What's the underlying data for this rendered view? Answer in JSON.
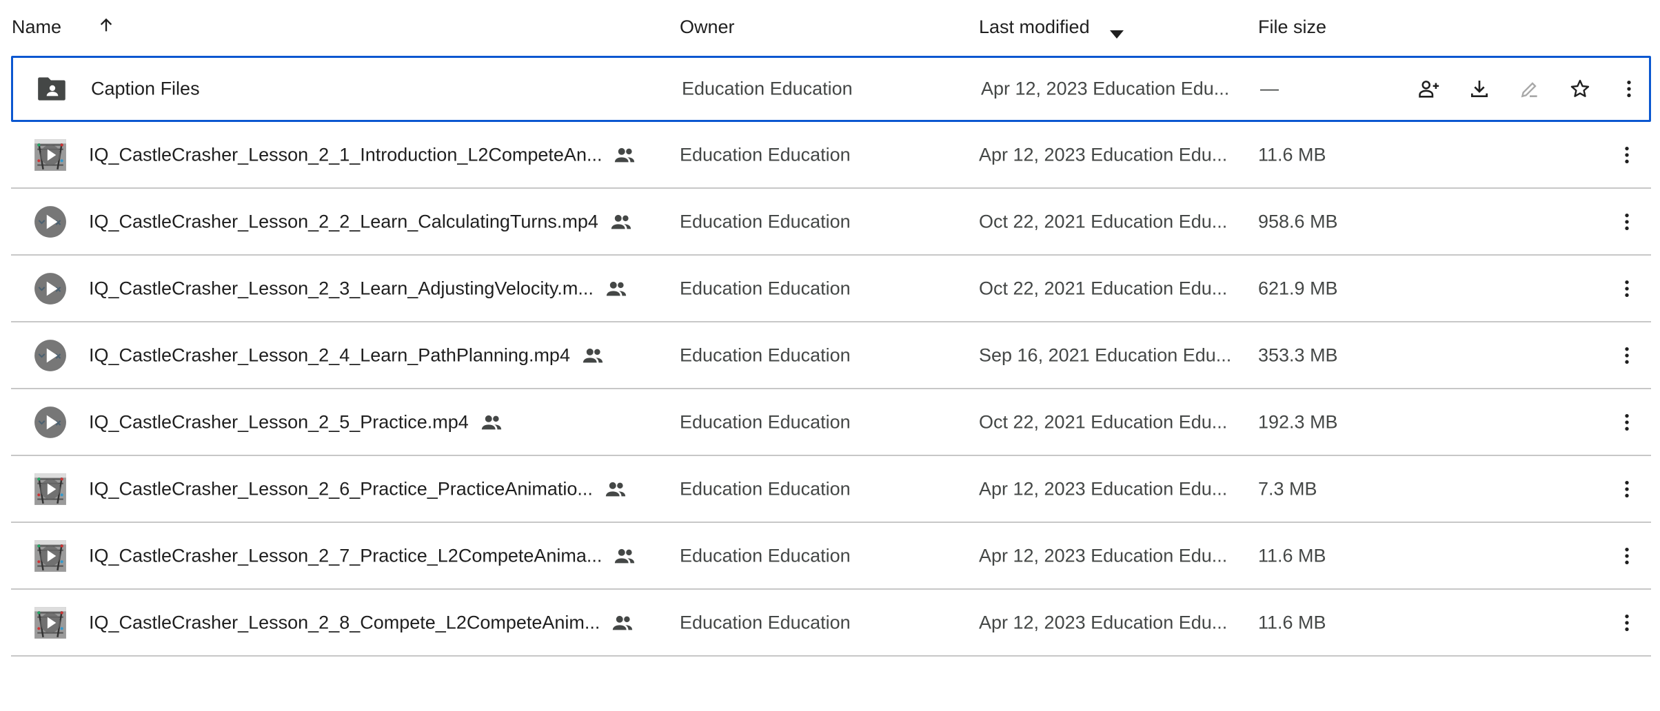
{
  "header": {
    "name": "Name",
    "owner": "Owner",
    "last_modified": "Last modified",
    "file_size": "File size",
    "sort_icon": "arrow-up-icon",
    "modified_sort_icon": "caret-down-icon"
  },
  "accent": "#0b57d0",
  "files": [
    {
      "icon": "folder",
      "name": "Caption Files",
      "shared": false,
      "owner": "Education Education",
      "modified": "Apr 12, 2023 Education Edu...",
      "size": "—",
      "selected": true
    },
    {
      "icon": "thumb",
      "name": "IQ_CastleCrasher_Lesson_2_1_Introduction_L2CompeteAn...",
      "shared": true,
      "owner": "Education Education",
      "modified": "Apr 12, 2023 Education Edu...",
      "size": "11.6 MB"
    },
    {
      "icon": "circle",
      "name": "IQ_CastleCrasher_Lesson_2_2_Learn_CalculatingTurns.mp4",
      "shared": true,
      "owner": "Education Education",
      "modified": "Oct 22, 2021 Education Edu...",
      "size": "958.6 MB"
    },
    {
      "icon": "circle",
      "name": "IQ_CastleCrasher_Lesson_2_3_Learn_AdjustingVelocity.m...",
      "shared": true,
      "owner": "Education Education",
      "modified": "Oct 22, 2021 Education Edu...",
      "size": "621.9 MB"
    },
    {
      "icon": "circle",
      "name": "IQ_CastleCrasher_Lesson_2_4_Learn_PathPlanning.mp4",
      "shared": true,
      "owner": "Education Education",
      "modified": "Sep 16, 2021 Education Edu...",
      "size": "353.3 MB"
    },
    {
      "icon": "circle",
      "name": "IQ_CastleCrasher_Lesson_2_5_Practice.mp4",
      "shared": true,
      "owner": "Education Education",
      "modified": "Oct 22, 2021 Education Edu...",
      "size": "192.3 MB"
    },
    {
      "icon": "thumb",
      "name": "IQ_CastleCrasher_Lesson_2_6_Practice_PracticeAnimatio...",
      "shared": true,
      "owner": "Education Education",
      "modified": "Apr 12, 2023 Education Edu...",
      "size": "7.3 MB"
    },
    {
      "icon": "thumb",
      "name": "IQ_CastleCrasher_Lesson_2_7_Practice_L2CompeteAnima...",
      "shared": true,
      "owner": "Education Education",
      "modified": "Apr 12, 2023 Education Edu...",
      "size": "11.6 MB"
    },
    {
      "icon": "thumb",
      "name": "IQ_CastleCrasher_Lesson_2_8_Compete_L2CompeteAnim...",
      "shared": true,
      "owner": "Education Education",
      "modified": "Apr 12, 2023 Education Edu...",
      "size": "11.6 MB"
    }
  ],
  "row_actions": [
    "share-icon",
    "download-icon",
    "rename-icon",
    "star-icon",
    "more-vert-icon"
  ]
}
